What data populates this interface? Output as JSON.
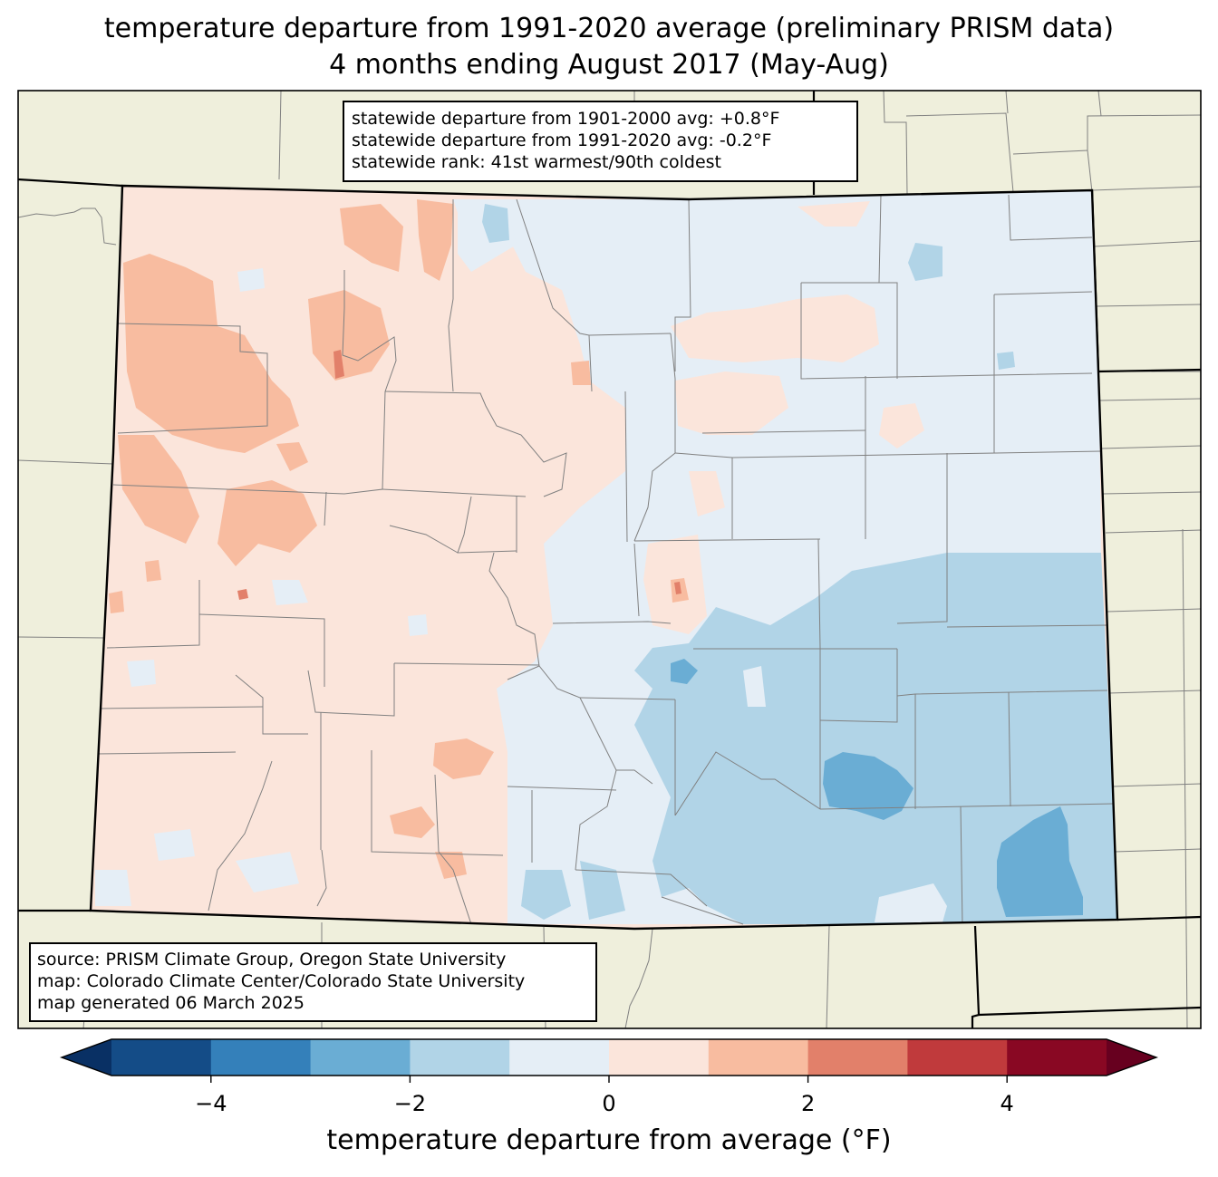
{
  "title": {
    "line1": "temperature departure from 1991-2020 average (preliminary PRISM data)",
    "line2": "4 months ending August 2017 (May-Aug)"
  },
  "stats": {
    "line1": "statewide departure from 1901-2000 avg: +0.8°F",
    "line2": "statewide departure from 1991-2020 avg: -0.2°F",
    "line3": "statewide rank: 41st warmest/90th coldest"
  },
  "source": {
    "line1": "source: PRISM Climate Group, Oregon State University",
    "line2": "map: Colorado Climate Center/Colorado State University",
    "line3": "map generated 06 March 2025"
  },
  "colorbar": {
    "title": "temperature departure from average (°F)",
    "tick_labels": [
      "−4",
      "−2",
      "0",
      "2",
      "4"
    ],
    "bins": [
      {
        "from": -5,
        "to": -4,
        "color": "#144c87"
      },
      {
        "from": -4,
        "to": -3,
        "color": "#3480ba"
      },
      {
        "from": -3,
        "to": -2,
        "color": "#6aadd4"
      },
      {
        "from": -2,
        "to": -1,
        "color": "#b1d4e7"
      },
      {
        "from": -1,
        "to": 0,
        "color": "#e5eef6"
      },
      {
        "from": 0,
        "to": 1,
        "color": "#fbe5db"
      },
      {
        "from": 1,
        "to": 2,
        "color": "#f8bca0"
      },
      {
        "from": 2,
        "to": 3,
        "color": "#e2806a"
      },
      {
        "from": 3,
        "to": 4,
        "color": "#c03a3c"
      },
      {
        "from": 4,
        "to": 5,
        "color": "#890823"
      }
    ],
    "under_color": "#093064",
    "over_color": "#67001f"
  },
  "colors": {
    "land": "#efefdc",
    "border": "#000000",
    "county_line": "#808080"
  }
}
